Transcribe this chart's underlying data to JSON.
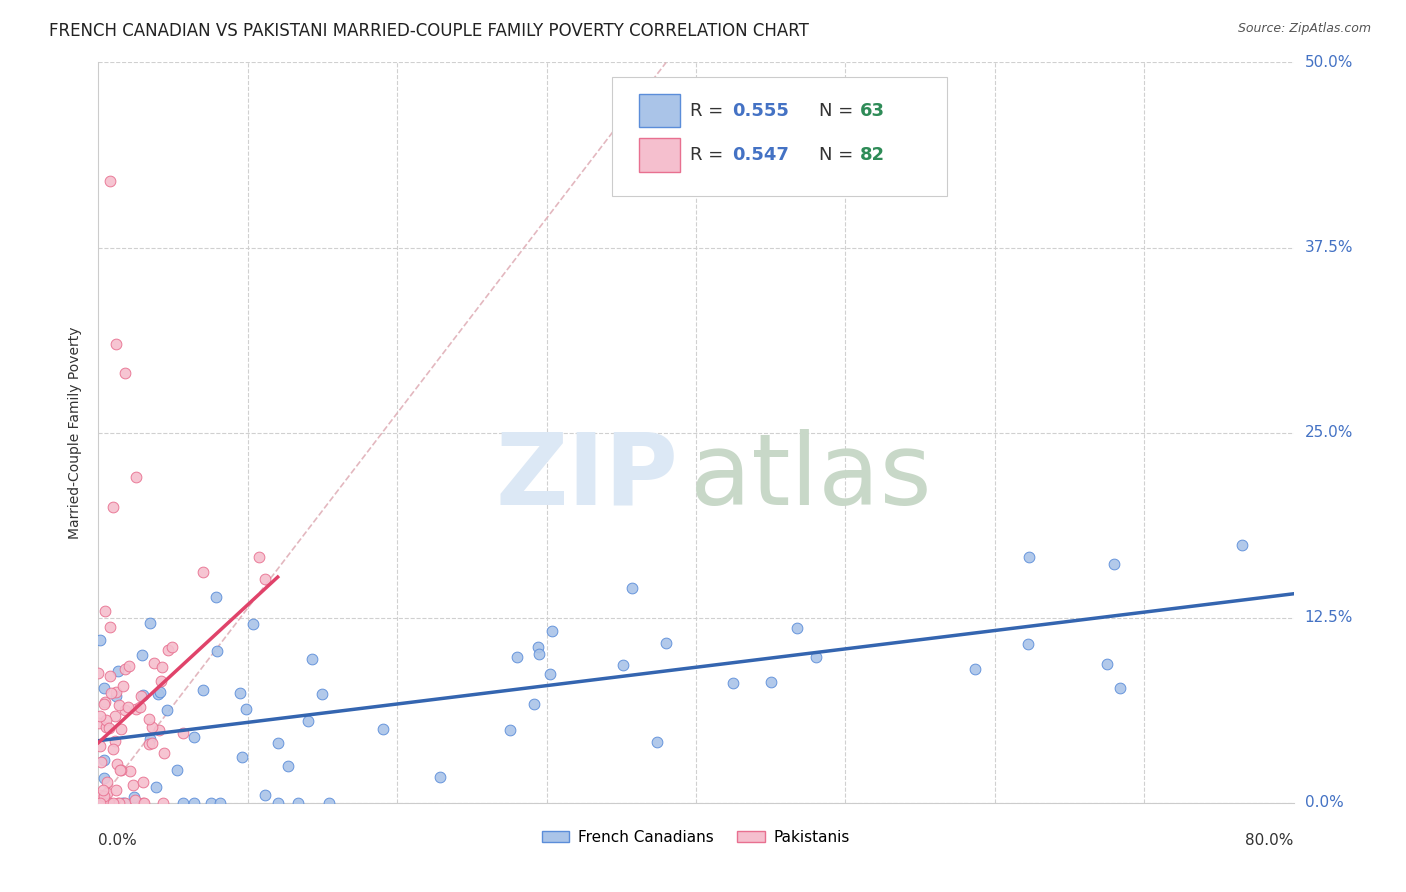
{
  "title": "FRENCH CANADIAN VS PAKISTANI MARRIED-COUPLE FAMILY POVERTY CORRELATION CHART",
  "source": "Source: ZipAtlas.com",
  "ylabel": "Married-Couple Family Poverty",
  "ytick_labels": [
    "0.0%",
    "12.5%",
    "25.0%",
    "37.5%",
    "50.0%"
  ],
  "xlim": [
    0,
    0.8
  ],
  "ylim": [
    0,
    0.5
  ],
  "french_canadians": {
    "R": 0.555,
    "N": 63,
    "scatter_color": "#aac4e8",
    "edge_color": "#5b8dd9",
    "line_color": "#3465b0",
    "label": "French Canadians"
  },
  "pakistanis": {
    "R": 0.547,
    "N": 82,
    "scatter_color": "#f5bfce",
    "edge_color": "#e87090",
    "line_color": "#e0436a",
    "label": "Pakistanis"
  },
  "diagonal_line_color": "#e0b0b8",
  "watermark_zip_color": "#dce8f5",
  "watermark_atlas_color": "#c8d8c8",
  "background_color": "#ffffff",
  "legend_R_color": "#4472c4",
  "legend_N_color": "#2e8b57",
  "title_fontsize": 12,
  "source_fontsize": 9,
  "axis_label_fontsize": 10,
  "tick_fontsize": 11,
  "legend_fontsize": 13,
  "grid_color": "#d0d0d0",
  "spine_color": "#cccccc"
}
